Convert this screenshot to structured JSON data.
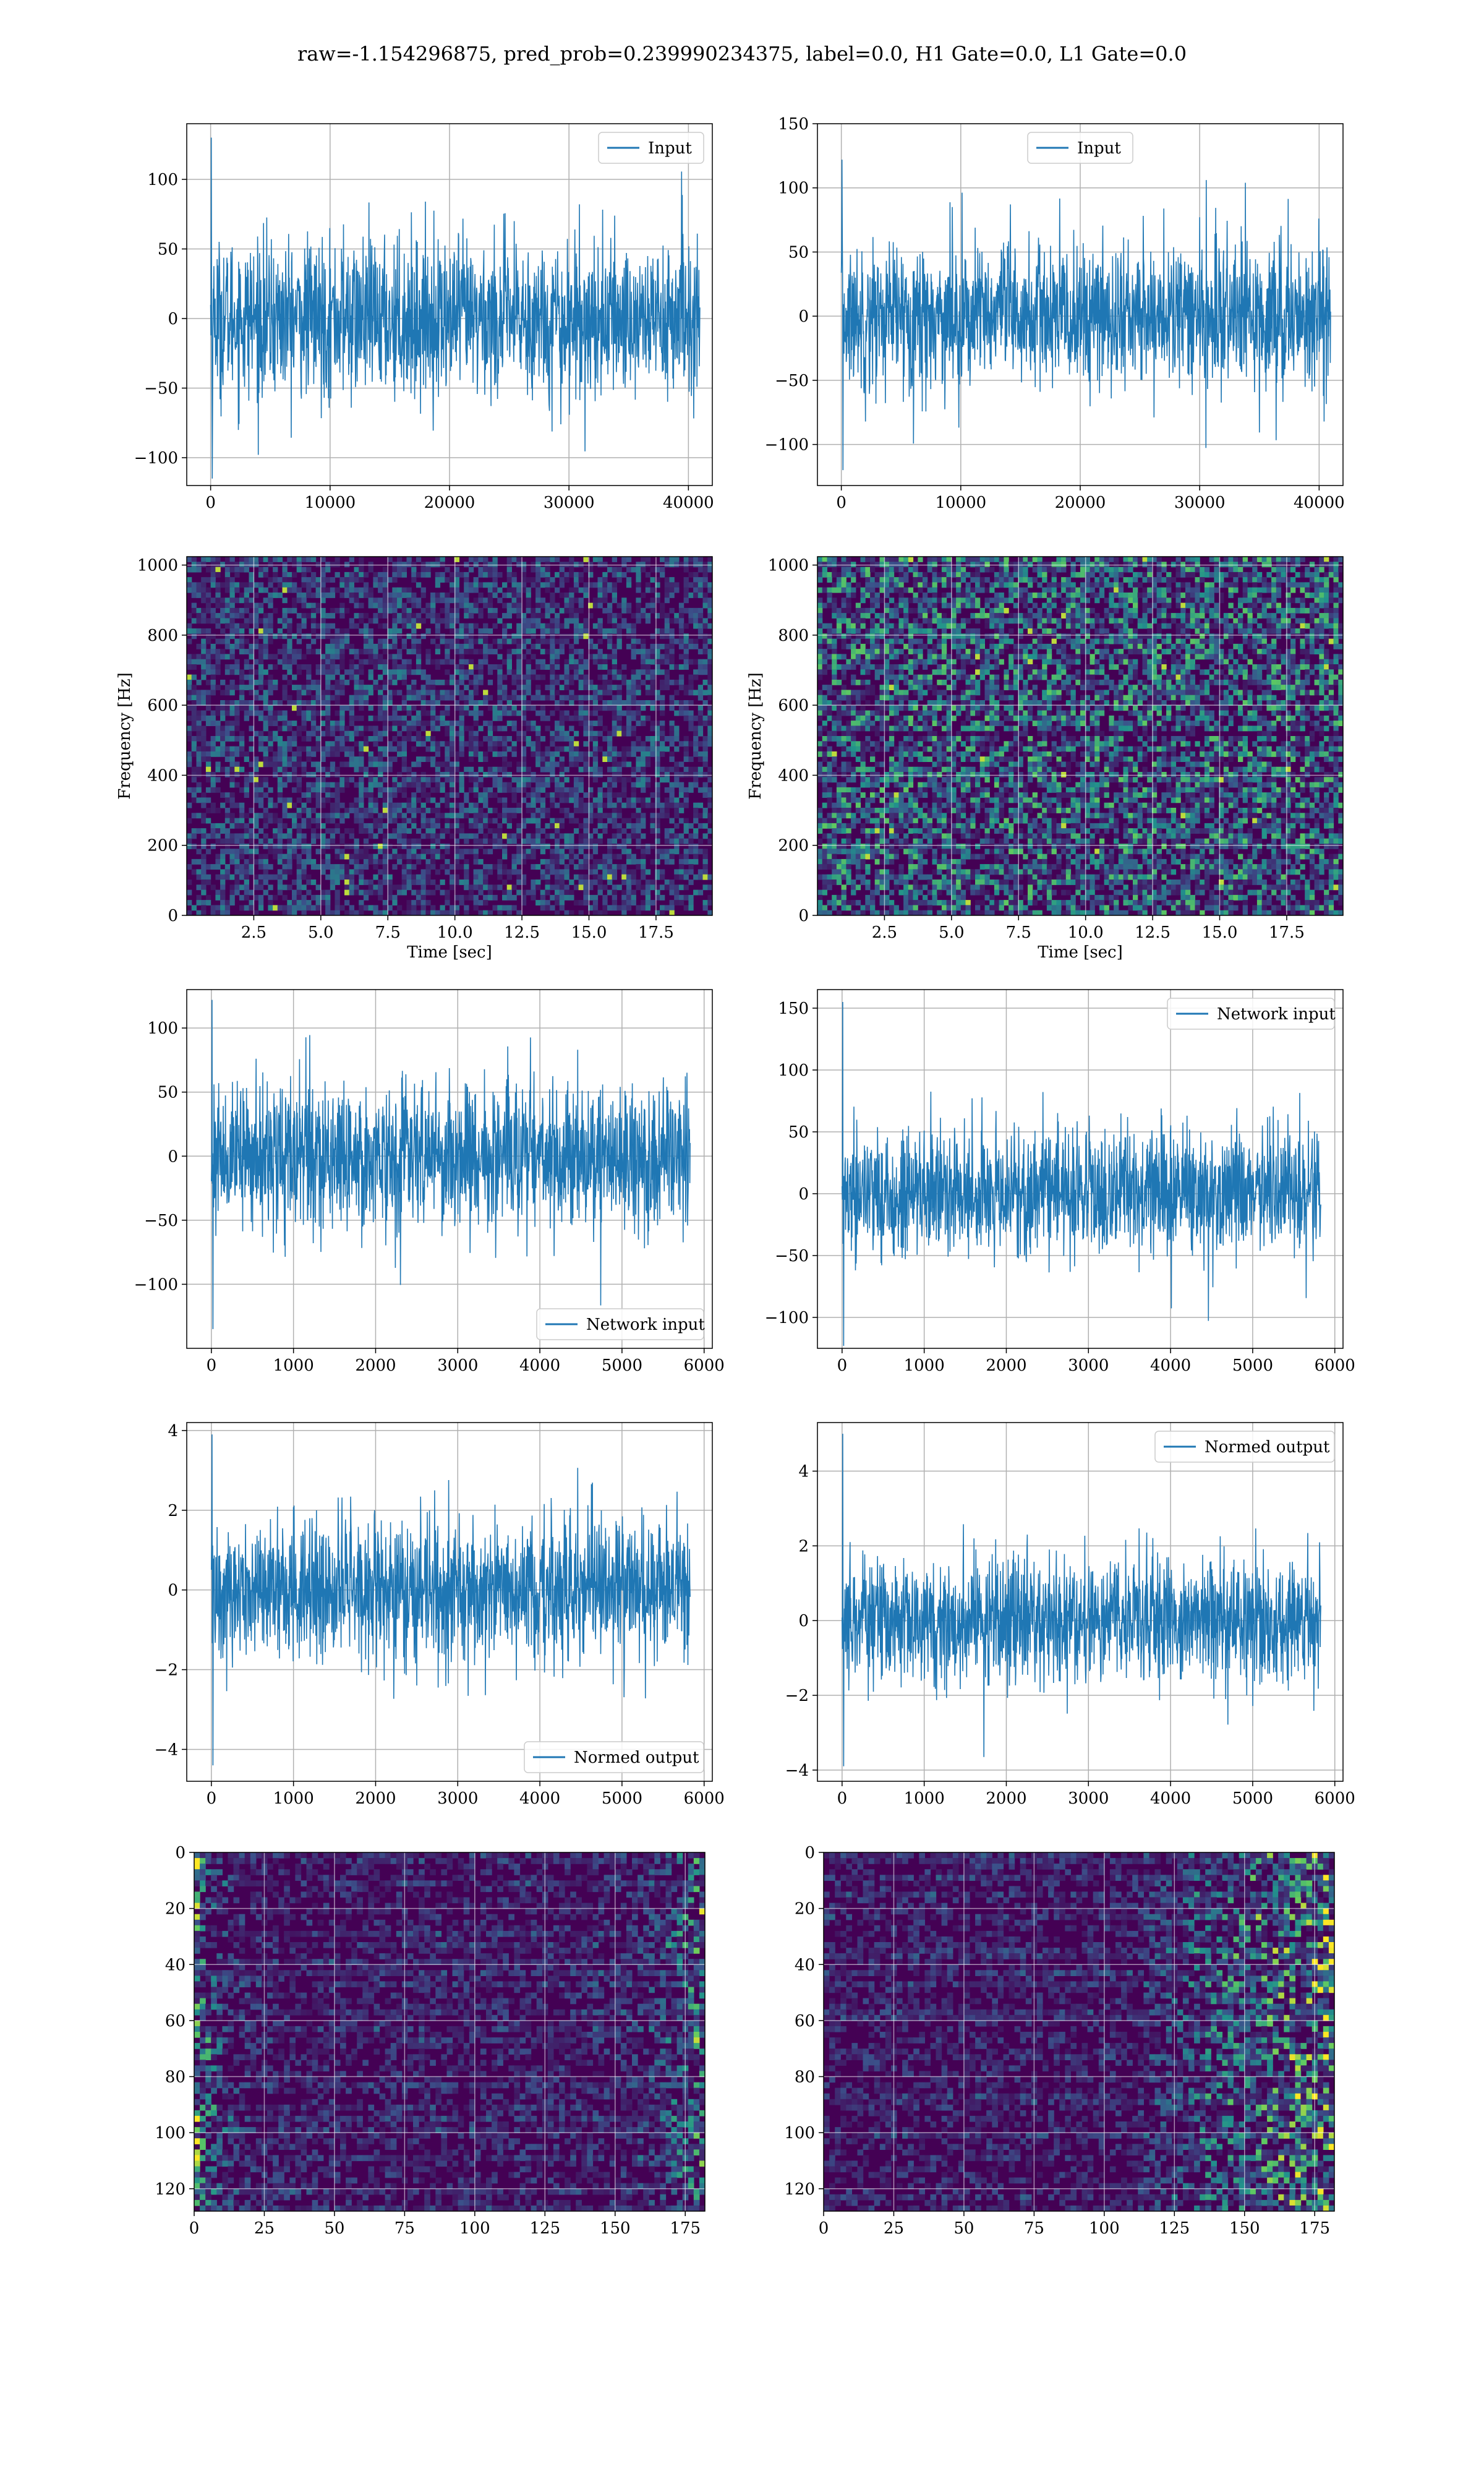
{
  "title": "raw=-1.154296875, pred_prob=0.239990234375, label=0.0, H1 Gate=0.0, L1 Gate=0.0",
  "colors": {
    "series": "#1f77b4",
    "grid": "#b0b0b0",
    "viridis_low": "#440154",
    "viridis_high": "#fde725"
  },
  "chart_data": [
    {
      "type": "line",
      "row": 1,
      "col": 1,
      "legend": "Input",
      "legend_loc": "upper right",
      "xlim": [
        -2000,
        42000
      ],
      "ylim": [
        -120,
        140
      ],
      "xticks": [
        0,
        10000,
        20000,
        30000,
        40000
      ],
      "yticks": [
        -100,
        -50,
        0,
        50,
        100
      ],
      "xtick_labels": [
        "0",
        "10000",
        "20000",
        "30000",
        "40000"
      ],
      "ytick_labels": [
        "−100",
        "−50",
        "0",
        "50",
        "100"
      ],
      "series": [
        {
          "x_range": [
            0,
            40960
          ],
          "amplitude_std": 28,
          "min": -115,
          "max": 130
        }
      ],
      "grid": true
    },
    {
      "type": "line",
      "row": 1,
      "col": 2,
      "legend": "Input",
      "legend_loc": "upper center",
      "xlim": [
        -2000,
        42000
      ],
      "ylim": [
        -132,
        150
      ],
      "xticks": [
        0,
        10000,
        20000,
        30000,
        40000
      ],
      "yticks": [
        -100,
        -50,
        0,
        50,
        100,
        150
      ],
      "xtick_labels": [
        "0",
        "10000",
        "20000",
        "30000",
        "40000"
      ],
      "ytick_labels": [
        "−100",
        "−50",
        "0",
        "50",
        "100",
        "150"
      ],
      "series": [
        {
          "x_range": [
            0,
            40960
          ],
          "amplitude_std": 28,
          "min": -120,
          "max": 122
        }
      ],
      "grid": true
    },
    {
      "type": "heatmap",
      "row": 2,
      "col": 1,
      "xlabel": "Time [sec]",
      "ylabel": "Frequency [Hz]",
      "xlim": [
        0,
        19.6
      ],
      "ylim": [
        0,
        1024
      ],
      "xticks": [
        2.5,
        5.0,
        7.5,
        10.0,
        12.5,
        15.0,
        17.5
      ],
      "yticks": [
        0,
        200,
        400,
        600,
        800,
        1000
      ],
      "xtick_labels": [
        "2.5",
        "5.0",
        "7.5",
        "10.0",
        "12.5",
        "15.0",
        "17.5"
      ],
      "ytick_labels": [
        "0",
        "200",
        "400",
        "600",
        "800",
        "1000"
      ],
      "colormap": "viridis",
      "intensity": 0.45,
      "grid": true
    },
    {
      "type": "heatmap",
      "row": 2,
      "col": 2,
      "xlabel": "Time [sec]",
      "ylabel": "Frequency [Hz]",
      "xlim": [
        0,
        19.6
      ],
      "ylim": [
        0,
        1024
      ],
      "xticks": [
        2.5,
        5.0,
        7.5,
        10.0,
        12.5,
        15.0,
        17.5
      ],
      "yticks": [
        0,
        200,
        400,
        600,
        800,
        1000
      ],
      "xtick_labels": [
        "2.5",
        "5.0",
        "7.5",
        "10.0",
        "12.5",
        "15.0",
        "17.5"
      ],
      "ytick_labels": [
        "0",
        "200",
        "400",
        "600",
        "800",
        "1000"
      ],
      "colormap": "viridis",
      "intensity": 0.75,
      "grid": true
    },
    {
      "type": "line",
      "row": 3,
      "col": 1,
      "legend": "Network input",
      "legend_loc": "lower right",
      "xlim": [
        -300,
        6100
      ],
      "ylim": [
        -150,
        130
      ],
      "xticks": [
        0,
        1000,
        2000,
        3000,
        4000,
        5000,
        6000
      ],
      "yticks": [
        -100,
        -50,
        0,
        50,
        100
      ],
      "xtick_labels": [
        "0",
        "1000",
        "2000",
        "3000",
        "4000",
        "5000",
        "6000"
      ],
      "ytick_labels": [
        "−100",
        "−50",
        "0",
        "50",
        "100"
      ],
      "series": [
        {
          "x_range": [
            0,
            5830
          ],
          "amplitude_std": 28,
          "min": -135,
          "max": 122
        }
      ],
      "grid": true
    },
    {
      "type": "line",
      "row": 3,
      "col": 2,
      "legend": "Network input",
      "legend_loc": "upper right",
      "xlim": [
        -300,
        6100
      ],
      "ylim": [
        -125,
        165
      ],
      "xticks": [
        0,
        1000,
        2000,
        3000,
        4000,
        5000,
        6000
      ],
      "yticks": [
        -100,
        -50,
        0,
        50,
        100,
        150
      ],
      "xtick_labels": [
        "0",
        "1000",
        "2000",
        "3000",
        "4000",
        "5000",
        "6000"
      ],
      "ytick_labels": [
        "−100",
        "−50",
        "0",
        "50",
        "100",
        "150"
      ],
      "series": [
        {
          "x_range": [
            0,
            5830
          ],
          "amplitude_std": 26,
          "min": -123,
          "max": 155
        }
      ],
      "grid": true
    },
    {
      "type": "line",
      "row": 4,
      "col": 1,
      "legend": "Normed output",
      "legend_loc": "lower right",
      "xlim": [
        -300,
        6100
      ],
      "ylim": [
        -4.8,
        4.2
      ],
      "xticks": [
        0,
        1000,
        2000,
        3000,
        4000,
        5000,
        6000
      ],
      "yticks": [
        -4,
        -2,
        0,
        2,
        4
      ],
      "xtick_labels": [
        "0",
        "1000",
        "2000",
        "3000",
        "4000",
        "5000",
        "6000"
      ],
      "ytick_labels": [
        "−4",
        "−2",
        "0",
        "2",
        "4"
      ],
      "series": [
        {
          "x_range": [
            0,
            5830
          ],
          "amplitude_std": 0.9,
          "min": -4.4,
          "max": 3.9
        }
      ],
      "grid": true
    },
    {
      "type": "line",
      "row": 4,
      "col": 2,
      "legend": "Normed output",
      "legend_loc": "upper right",
      "xlim": [
        -300,
        6100
      ],
      "ylim": [
        -4.3,
        5.3
      ],
      "xticks": [
        0,
        1000,
        2000,
        3000,
        4000,
        5000,
        6000
      ],
      "yticks": [
        -4,
        -2,
        0,
        2,
        4
      ],
      "xtick_labels": [
        "0",
        "1000",
        "2000",
        "3000",
        "4000",
        "5000",
        "6000"
      ],
      "ytick_labels": [
        "−4",
        "−2",
        "0",
        "2",
        "4"
      ],
      "series": [
        {
          "x_range": [
            0,
            5830
          ],
          "amplitude_std": 0.85,
          "min": -3.9,
          "max": 5.0
        }
      ],
      "grid": true
    },
    {
      "type": "heatmap",
      "row": 5,
      "col": 1,
      "xlim": [
        0,
        182
      ],
      "ylim": [
        128,
        0
      ],
      "xticks": [
        0,
        25,
        50,
        75,
        100,
        125,
        150,
        175
      ],
      "yticks": [
        0,
        20,
        40,
        60,
        80,
        100,
        120
      ],
      "xtick_labels": [
        "0",
        "25",
        "50",
        "75",
        "100",
        "125",
        "150",
        "175"
      ],
      "ytick_labels": [
        "0",
        "20",
        "40",
        "60",
        "80",
        "100",
        "120"
      ],
      "colormap": "viridis",
      "hot_region": "left and right edges",
      "grid": true
    },
    {
      "type": "heatmap",
      "row": 5,
      "col": 2,
      "xlim": [
        0,
        182
      ],
      "ylim": [
        128,
        0
      ],
      "xticks": [
        0,
        25,
        50,
        75,
        100,
        125,
        150,
        175
      ],
      "yticks": [
        0,
        20,
        40,
        60,
        80,
        100,
        120
      ],
      "xtick_labels": [
        "0",
        "25",
        "50",
        "75",
        "100",
        "125",
        "150",
        "175"
      ],
      "ytick_labels": [
        "0",
        "20",
        "40",
        "60",
        "80",
        "100",
        "120"
      ],
      "colormap": "viridis",
      "hot_region": "right third",
      "grid": true
    }
  ]
}
